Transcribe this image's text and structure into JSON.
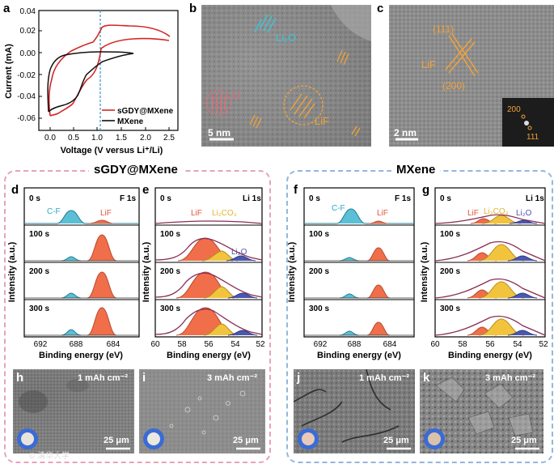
{
  "panels": {
    "a": "a",
    "b": "b",
    "c": "c",
    "d": "d",
    "e": "e",
    "f": "f",
    "g": "g",
    "h": "h",
    "i": "i",
    "j": "j",
    "k": "k"
  },
  "cv": {
    "ylabel": "Current (mA)",
    "xlabel": "Voltage (V versus Li⁺/Li)",
    "yticks": [
      "0.04",
      "0.02",
      "0.00",
      "-0.02",
      "-0.04",
      "-0.06"
    ],
    "xticks": [
      "0.0",
      "0.5",
      "1.0",
      "1.5",
      "2.0",
      "2.5"
    ],
    "legend": [
      "sGDY@MXene",
      "MXene"
    ]
  },
  "temB": {
    "li2o": "Li₂O",
    "li": "Li",
    "lif": "LiF",
    "scale": "5 nm"
  },
  "temC": {
    "p111": "(111)",
    "lif": "LiF",
    "p200": "(200)",
    "scale": "2 nm",
    "fft200": "200",
    "fft111": "111"
  },
  "groups": {
    "left": "sGDY@MXene",
    "right": "MXene"
  },
  "xps": {
    "ylabel": "Intensity (a.u.)",
    "xlabel": "Binding energy (eV)",
    "times": [
      "0 s",
      "100 s",
      "200 s",
      "300 s"
    ],
    "f1s": "F 1s",
    "li1s": "Li 1s",
    "cf": "C-F",
    "lif": "LiF",
    "li2co3": "Li₂CO₃",
    "li2o": "Li₂O",
    "fticks": [
      "692",
      "688",
      "684"
    ],
    "liticks": [
      "60",
      "58",
      "56",
      "54",
      "52"
    ]
  },
  "sem": {
    "h": {
      "cap": "1 mAh cm⁻²",
      "scale": "25 μm"
    },
    "i": {
      "cap": "3 mAh cm⁻²",
      "scale": "25 μm"
    },
    "j": {
      "cap": "1 mAh cm⁻²",
      "scale": "25 μm"
    },
    "k": {
      "cap": "3 mAh cm⁻²",
      "scale": "25 μm"
    }
  },
  "watermark": "© 清华大学"
}
